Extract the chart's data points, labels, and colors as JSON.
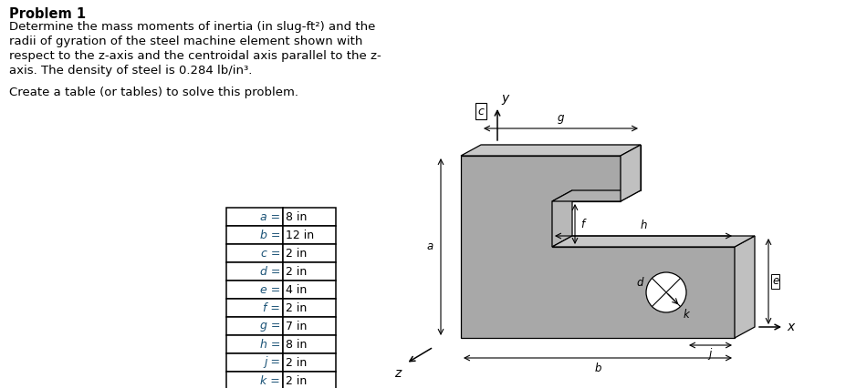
{
  "title": "Problem 1",
  "line1": "Determine the mass moments of inertia (in slug-ft²) and the",
  "line2": "radii of gyration of the steel machine element shown with",
  "line3": "respect to the z-axis and the centroidal axis parallel to the z-",
  "line4": "axis. The density of steel is 0.284 lb/in³.",
  "create_text": "Create a table (or tables) to solve this problem.",
  "table_labels": [
    "a =",
    "b =",
    "c =",
    "d =",
    "e =",
    "f =",
    "g =",
    "h =",
    "j =",
    "k ="
  ],
  "table_values": [
    "8 in",
    "12 in",
    "2 in",
    "2 in",
    "4 in",
    "2 in",
    "7 in",
    "8 in",
    "2 in",
    "2 in"
  ],
  "text_color": "#000000",
  "label_color": "#1a5276",
  "bg_color": "#ffffff",
  "gray_front": "#a8a8a8",
  "gray_top": "#c8c8c8",
  "gray_right": "#c0c0c0",
  "gray_dark": "#888888",
  "edge_color": "#000000",
  "title_fontsize": 10.5,
  "body_fontsize": 9.5,
  "table_fontsize": 9.0
}
